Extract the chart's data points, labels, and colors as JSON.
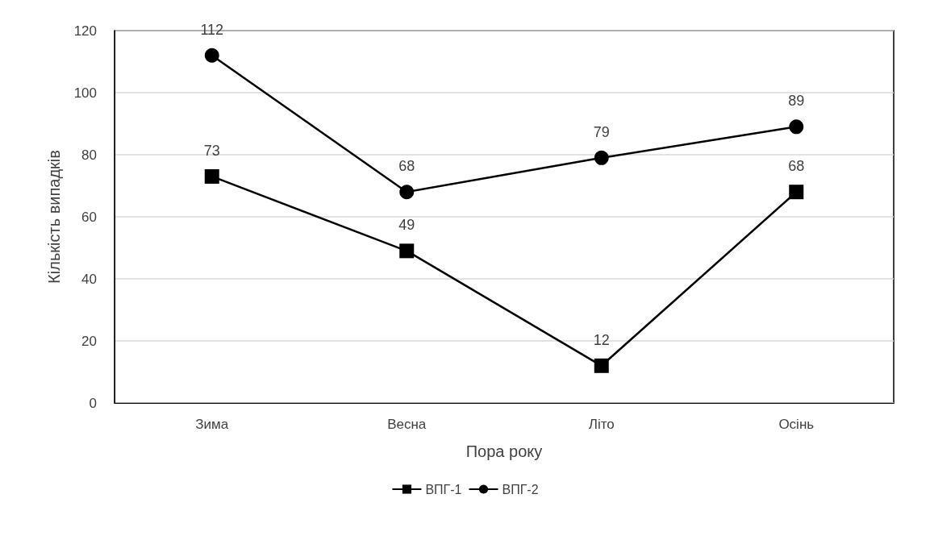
{
  "chart_data": {
    "type": "line",
    "categories": [
      "Зима",
      "Весна",
      "Літо",
      "Осінь"
    ],
    "xlabel": "Пора року",
    "ylabel": "Кількість випадків",
    "series": [
      {
        "name": "ВПГ-1",
        "color": "#000000",
        "marker": "square",
        "values": [
          73,
          49,
          12,
          68
        ]
      },
      {
        "name": "ВПГ-2",
        "color": "#000000",
        "marker": "circle",
        "values": [
          112,
          68,
          79,
          89
        ]
      }
    ],
    "ylim": [
      0,
      120
    ],
    "yticks": [
      0,
      20,
      40,
      60,
      80,
      100,
      120
    ],
    "grid": "y",
    "legend": "bottom",
    "data_labels": true,
    "line_style": "solid"
  }
}
